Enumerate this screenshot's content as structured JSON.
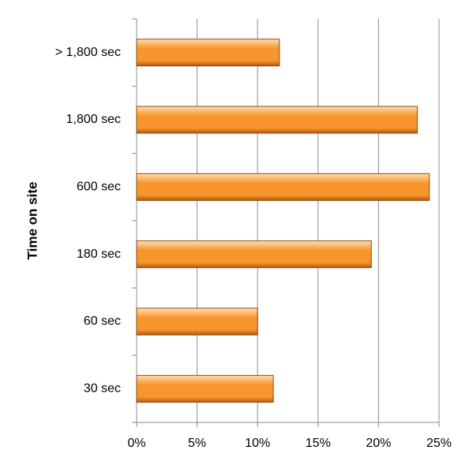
{
  "chart_data": {
    "type": "bar",
    "orientation": "horizontal",
    "y_axis_label": "Time on site",
    "categories": [
      "> 1,800 sec",
      "1,800 sec",
      "600 sec",
      "180 sec",
      "60 sec",
      "30 sec"
    ],
    "values": [
      11.8,
      23.2,
      24.2,
      19.4,
      10.0,
      11.3
    ],
    "color": "#f7962f",
    "xlim": [
      0,
      25
    ],
    "xticks": [
      {
        "value": 0,
        "label": "0%"
      },
      {
        "value": 5,
        "label": "5%"
      },
      {
        "value": 10,
        "label": "10%"
      },
      {
        "value": 15,
        "label": "15%"
      },
      {
        "value": 20,
        "label": "20%"
      },
      {
        "value": 25,
        "label": "25%"
      }
    ],
    "grid": true
  }
}
